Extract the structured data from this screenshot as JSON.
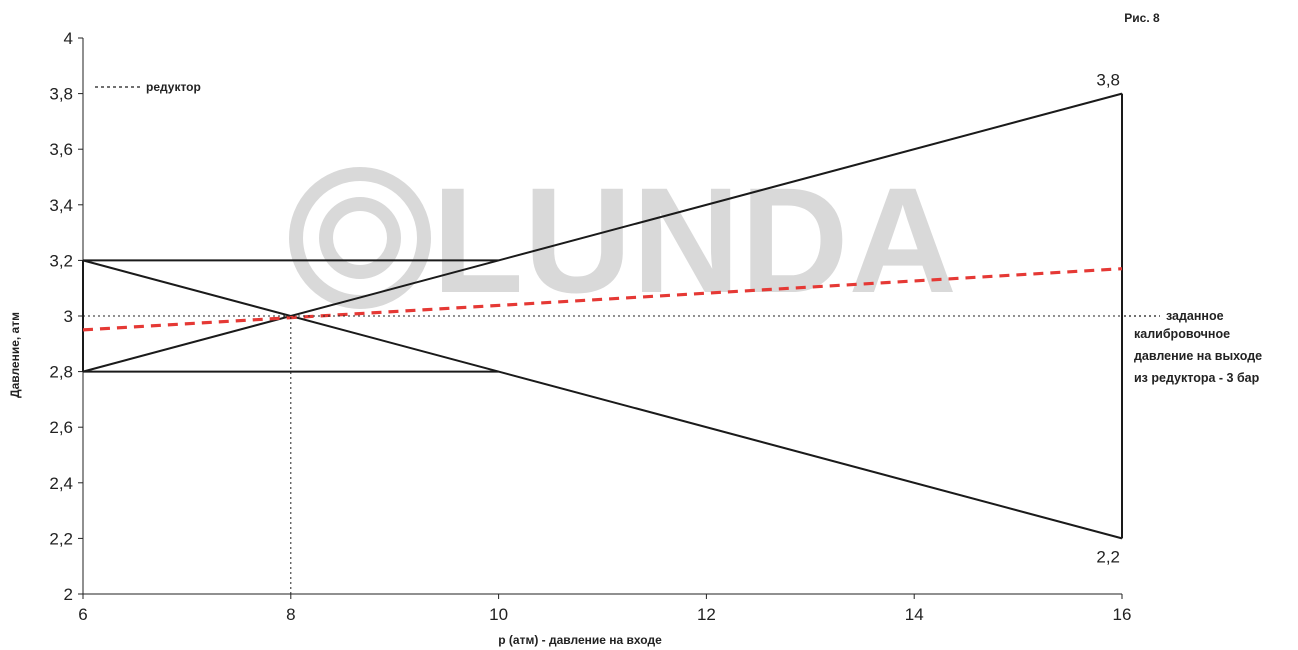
{
  "figure_label": "Рис. 8",
  "watermark": {
    "text": "LUNDA",
    "color": "#d9d9d9"
  },
  "legend": {
    "entry": "редуктор"
  },
  "right_note": {
    "lines": [
      "заданное",
      "калибровочное",
      "давление на выходе",
      "из редуктора - 3 бар"
    ]
  },
  "colors": {
    "line": "#1a1a1a",
    "reducer": "#e53935",
    "watermark": "#d9d9d9"
  },
  "chart_data": {
    "type": "line",
    "xlabel": "p (атм) - давление на входе",
    "ylabel": "Давление, атм",
    "xlim": [
      6,
      16
    ],
    "ylim": [
      2,
      4
    ],
    "x_ticks": [
      6,
      8,
      10,
      12,
      14,
      16
    ],
    "y_ticks": [
      2,
      2.2,
      2.4,
      2.6,
      2.8,
      3,
      3.2,
      3.4,
      3.6,
      3.8,
      4
    ],
    "x_tick_labels": [
      "6",
      "8",
      "10",
      "12",
      "14",
      "16"
    ],
    "y_tick_labels": [
      "2",
      "2,2",
      "2,4",
      "2,6",
      "2,8",
      "3",
      "3,2",
      "3,4",
      "3,6",
      "3,8",
      "4"
    ],
    "grid": false,
    "series": [
      {
        "style": "solid",
        "points": [
          [
            6,
            2.8
          ],
          [
            16,
            3.8
          ]
        ]
      },
      {
        "style": "solid",
        "points": [
          [
            6,
            3.2
          ],
          [
            16,
            2.2
          ]
        ]
      },
      {
        "style": "solid",
        "points": [
          [
            6,
            3.2
          ],
          [
            10,
            3.2
          ]
        ]
      },
      {
        "style": "solid",
        "points": [
          [
            6,
            2.8
          ],
          [
            10,
            2.8
          ]
        ]
      },
      {
        "style": "solid",
        "points": [
          [
            6,
            2.8
          ],
          [
            6,
            3.2
          ]
        ]
      },
      {
        "style": "solid",
        "points": [
          [
            16,
            2.2
          ],
          [
            16,
            3.8
          ]
        ]
      },
      {
        "name": "редуктор",
        "style": "dashed-red",
        "points": [
          [
            6,
            2.95
          ],
          [
            16,
            3.17
          ]
        ]
      },
      {
        "style": "dotted",
        "points": [
          [
            6,
            3.0
          ],
          [
            16,
            3.0
          ]
        ]
      },
      {
        "style": "dotted",
        "points": [
          [
            8,
            2.0
          ],
          [
            8,
            3.0
          ]
        ]
      }
    ],
    "annotations": [
      {
        "text": "3,8",
        "x": 16,
        "y": 3.8
      },
      {
        "text": "2,2",
        "x": 16,
        "y": 2.2
      }
    ]
  }
}
